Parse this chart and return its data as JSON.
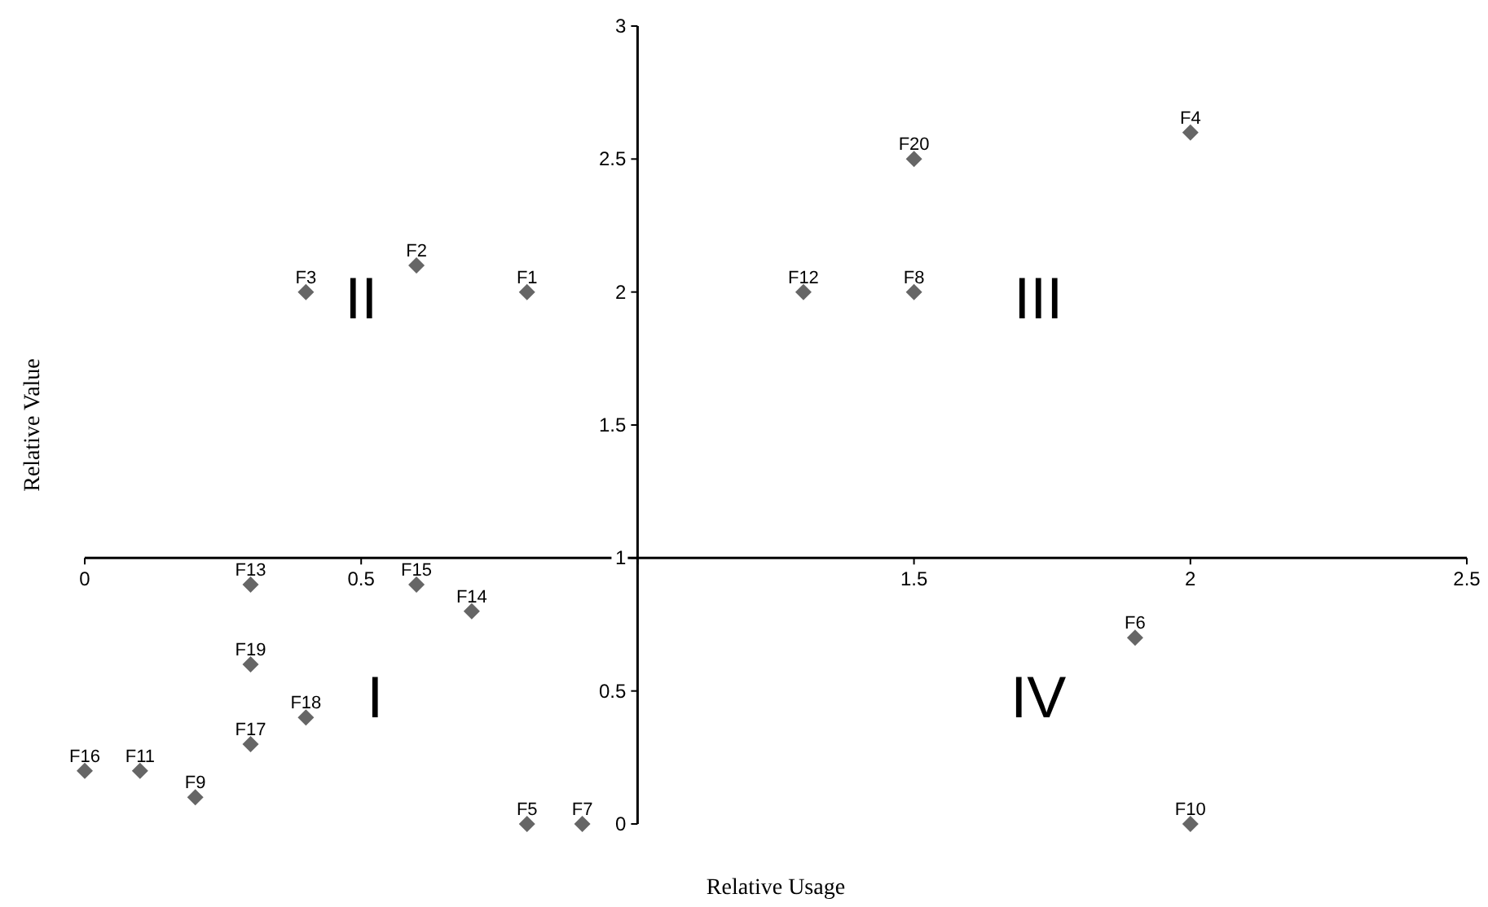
{
  "chart_data": {
    "type": "scatter",
    "xlabel": "Relative Usage",
    "ylabel": "Relative Value",
    "x": [
      0.8,
      0.6,
      0.4,
      2,
      0.8,
      1.9,
      0.9,
      1.5,
      0.2,
      2,
      0.1,
      1.3,
      0.3,
      0.7,
      0.6,
      0,
      0.3,
      0.4,
      0.3,
      1.5
    ],
    "values": [
      2,
      2.1,
      2,
      2.6,
      0,
      0.7,
      0,
      2,
      0.1,
      0,
      0.2,
      2,
      0.9,
      0.8,
      0.9,
      0.2,
      0.3,
      0.4,
      0.6,
      2.5
    ],
    "value_labels": [
      "F1",
      "F2",
      "F3",
      "F4",
      "F5",
      "F6",
      "F7",
      "F8",
      "F9",
      "F10",
      "F11",
      "F12",
      "F13",
      "F14",
      "F15",
      "F16",
      "F17",
      "F18",
      "F19",
      "F20"
    ],
    "color": "#666666",
    "marker": "diamond",
    "xlim": [
      0,
      2.5
    ],
    "xticks": [
      0,
      0.5,
      {
        "value": 1,
        "label": null
      },
      1.5,
      2,
      2.5
    ],
    "ylim": [
      0,
      3
    ],
    "yticks": [
      0,
      0.5,
      1,
      1.5,
      2,
      2.5,
      3
    ],
    "annotations": [
      "I",
      "II",
      "III",
      "IV"
    ],
    "grid": false,
    "legend": false
  }
}
